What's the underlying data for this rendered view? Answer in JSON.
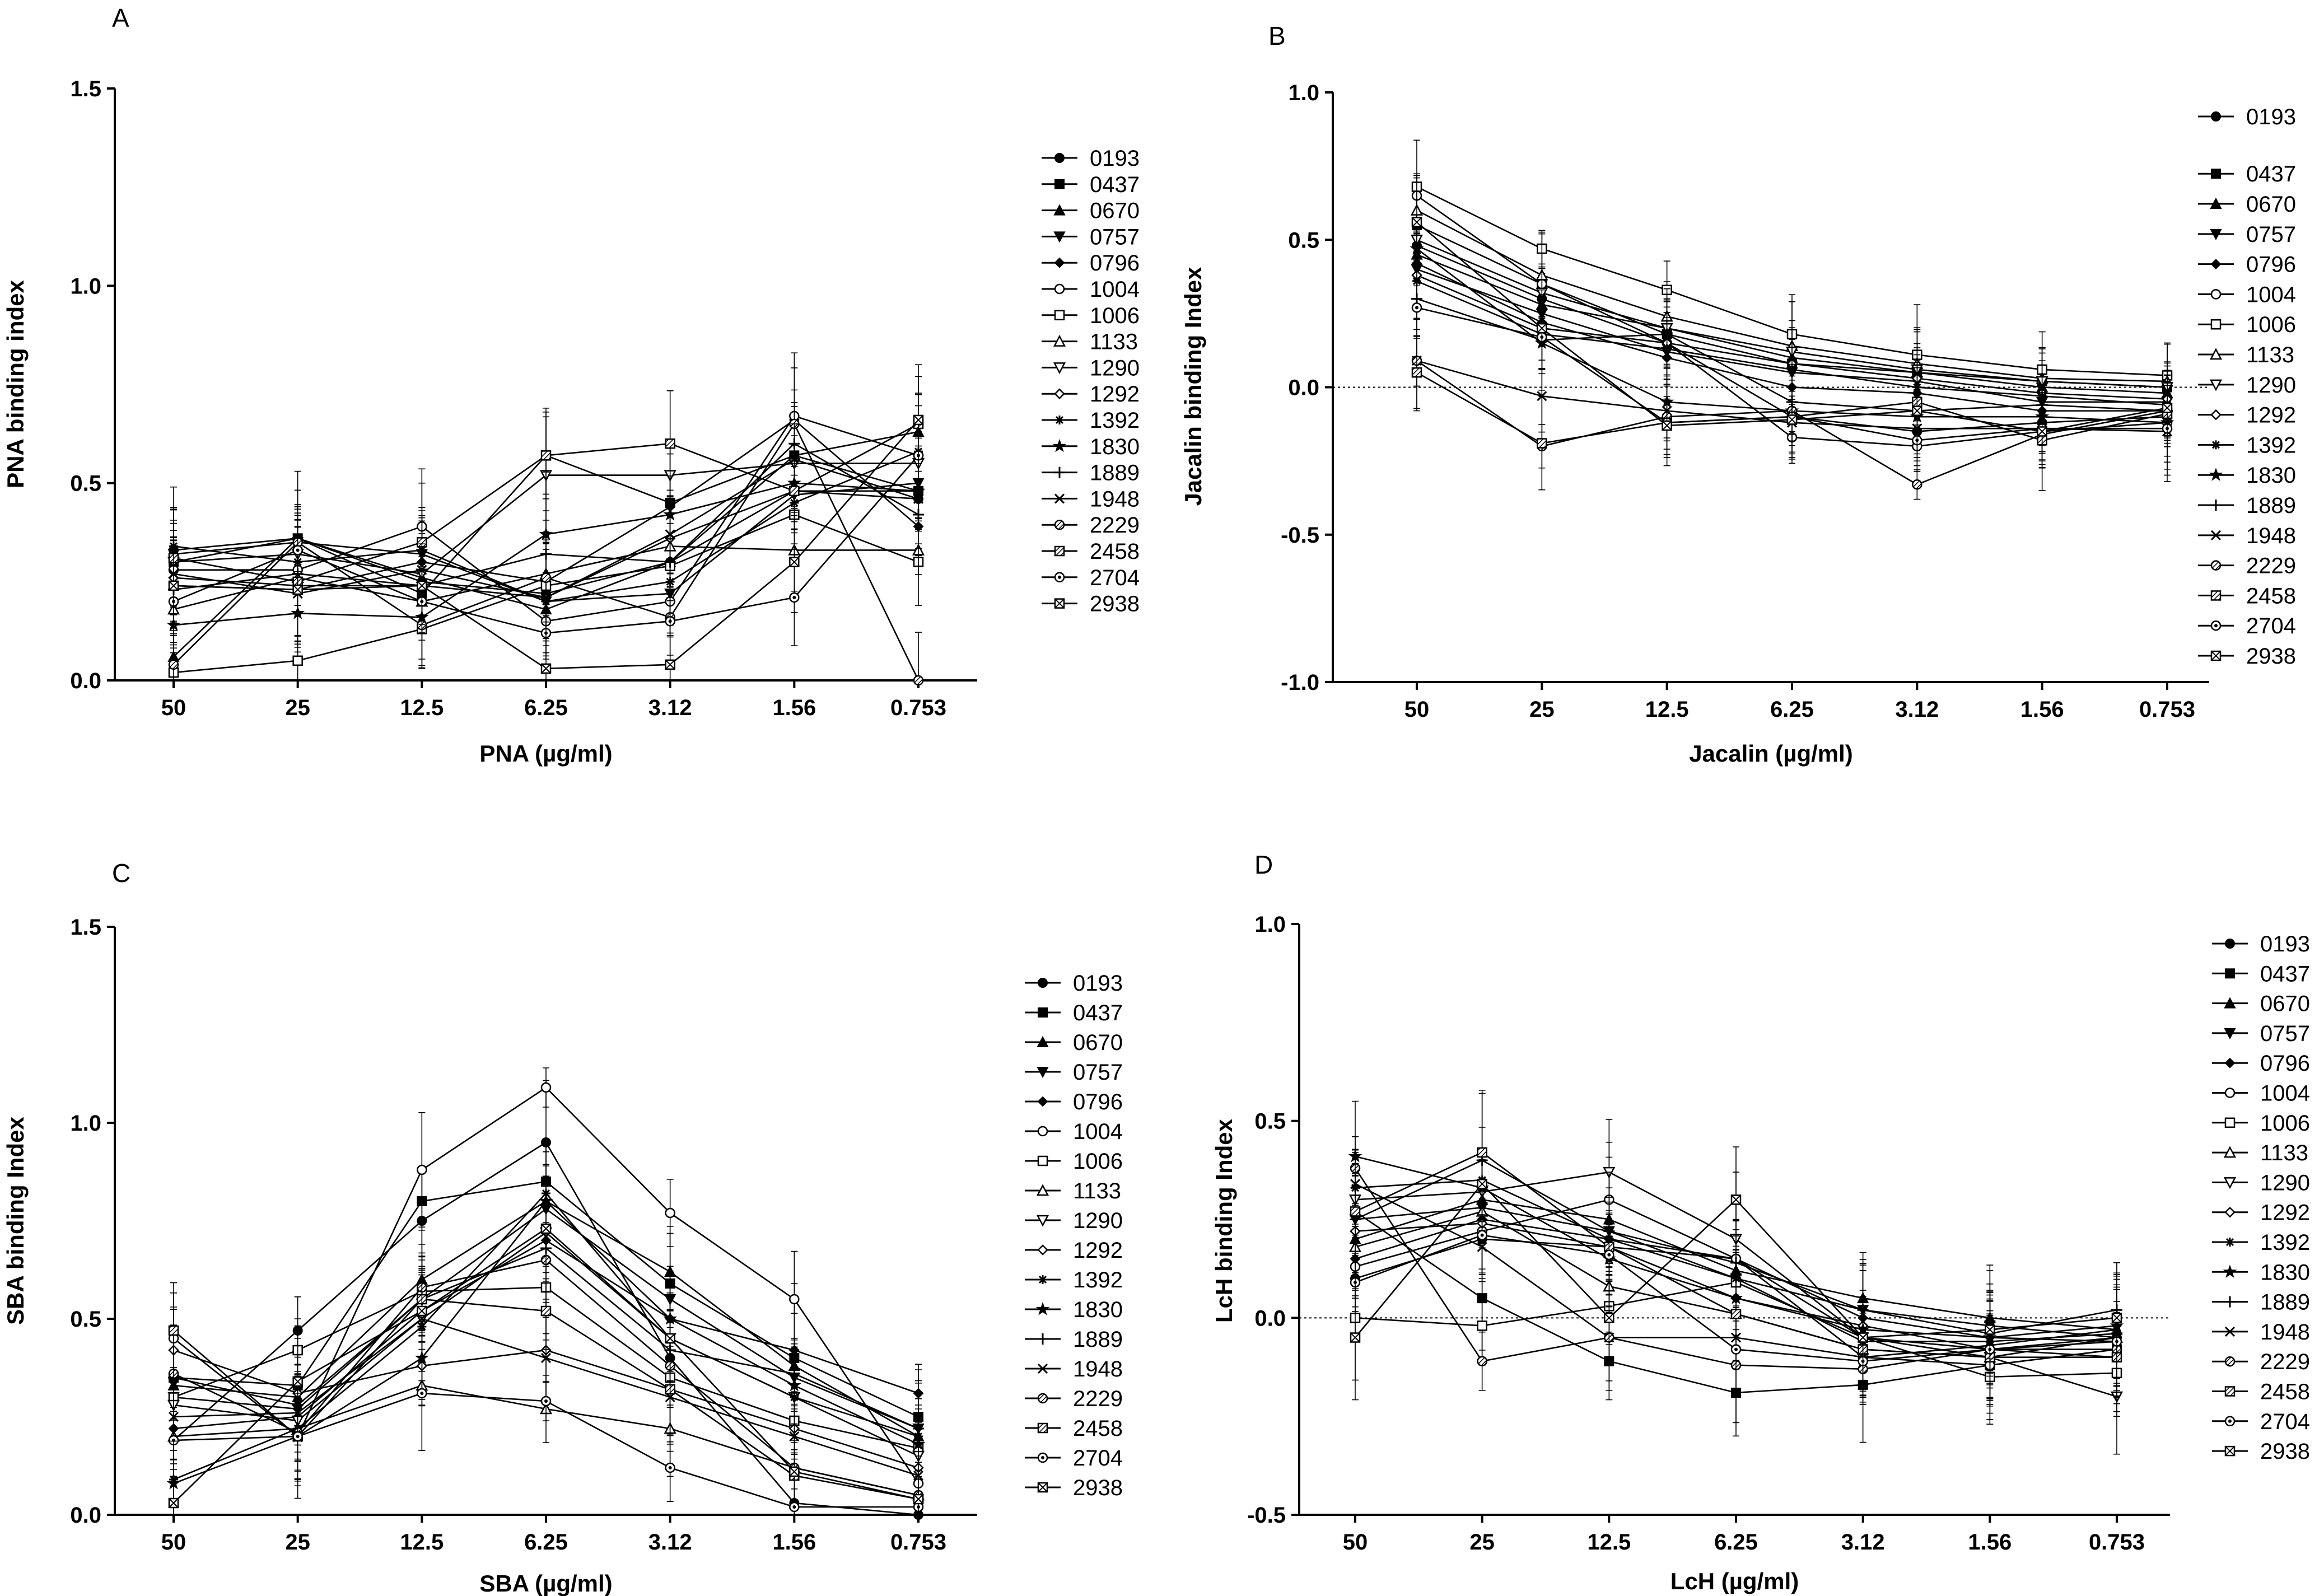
{
  "chart_data": [
    {
      "panel": "A",
      "type": "line",
      "xlabel": "PNA (µg/ml)",
      "ylabel": "PNA binding index",
      "categories": [
        "50",
        "25",
        "12.5",
        "6.25",
        "3.12",
        "1.56",
        "0.753"
      ],
      "ylim": [
        0,
        1.5
      ],
      "yticks": [
        "0.0",
        "0.5",
        "1.0",
        "1.5"
      ],
      "zero_line": false,
      "legend_gap_after_first": false,
      "series": [
        {
          "name": "0193",
          "marker": "circle-filled",
          "values": [
            0.33,
            0.36,
            0.25,
            0.22,
            0.3,
            0.48,
            0.46
          ]
        },
        {
          "name": "0437",
          "marker": "square-filled",
          "values": [
            0.3,
            0.36,
            0.22,
            0.57,
            0.45,
            0.57,
            0.48
          ]
        },
        {
          "name": "0670",
          "marker": "triangle-up-filled",
          "values": [
            0.06,
            0.36,
            0.26,
            0.18,
            0.3,
            0.57,
            0.63
          ]
        },
        {
          "name": "0757",
          "marker": "triangle-down-filled",
          "values": [
            0.32,
            0.35,
            0.32,
            0.2,
            0.22,
            0.47,
            0.5
          ]
        },
        {
          "name": "0796",
          "marker": "diamond-filled",
          "values": [
            0.24,
            0.23,
            0.3,
            0.25,
            0.44,
            0.66,
            0.39
          ]
        },
        {
          "name": "1004",
          "marker": "circle-open",
          "values": [
            0.28,
            0.28,
            0.39,
            0.15,
            0.2,
            0.67,
            0.57
          ]
        },
        {
          "name": "1006",
          "marker": "square-open",
          "values": [
            0.02,
            0.05,
            0.13,
            0.24,
            0.29,
            0.42,
            0.3
          ]
        },
        {
          "name": "1133",
          "marker": "triangle-up-open",
          "values": [
            0.18,
            0.26,
            0.2,
            0.27,
            0.34,
            0.33,
            0.33
          ]
        },
        {
          "name": "1290",
          "marker": "triangle-down-open",
          "values": [
            0.3,
            0.32,
            0.27,
            0.52,
            0.52,
            0.55,
            0.55
          ]
        },
        {
          "name": "1292",
          "marker": "diamond-open",
          "values": [
            0.26,
            0.24,
            0.24,
            0.21,
            0.36,
            0.48,
            0.48
          ]
        },
        {
          "name": "1392",
          "marker": "asterisk",
          "values": [
            0.34,
            0.3,
            0.33,
            0.2,
            0.25,
            0.45,
            0.58
          ]
        },
        {
          "name": "1830",
          "marker": "star",
          "values": [
            0.14,
            0.17,
            0.16,
            0.37,
            0.42,
            0.5,
            0.48
          ]
        },
        {
          "name": "1889",
          "marker": "plus",
          "values": [
            0.23,
            0.27,
            0.24,
            0.32,
            0.3,
            0.6,
            0.42
          ]
        },
        {
          "name": "1948",
          "marker": "x",
          "values": [
            0.27,
            0.22,
            0.28,
            0.21,
            0.37,
            0.56,
            0.46
          ]
        },
        {
          "name": "2229",
          "marker": "circle-hatched",
          "values": [
            0.04,
            0.35,
            0.14,
            0.26,
            0.16,
            0.65,
            0.0
          ]
        },
        {
          "name": "2458",
          "marker": "square-hatched",
          "values": [
            0.31,
            0.25,
            0.35,
            0.57,
            0.6,
            0.48,
            0.65
          ]
        },
        {
          "name": "2704",
          "marker": "circle-dotted",
          "values": [
            0.2,
            0.33,
            0.2,
            0.12,
            0.15,
            0.21,
            0.57
          ]
        },
        {
          "name": "2938",
          "marker": "square-crossed",
          "values": [
            0.24,
            0.23,
            0.24,
            0.03,
            0.04,
            0.3,
            0.66
          ]
        }
      ]
    },
    {
      "panel": "B",
      "type": "line",
      "xlabel": "Jacalin (µg/ml)",
      "ylabel": "Jacalin binding Index",
      "categories": [
        "50",
        "25",
        "12.5",
        "6.25",
        "3.12",
        "1.56",
        "0.753"
      ],
      "ylim": [
        -1,
        1
      ],
      "yticks": [
        "-1.0",
        "-0.5",
        "0.0",
        "0.5",
        "1.0"
      ],
      "zero_line": true,
      "legend_gap_after_first": true,
      "series": [
        {
          "name": "0193",
          "marker": "circle-filled",
          "values": [
            0.48,
            0.3,
            0.15,
            -0.1,
            -0.15,
            -0.12,
            -0.1
          ]
        },
        {
          "name": "0437",
          "marker": "square-filled",
          "values": [
            0.55,
            0.35,
            0.18,
            0.08,
            0.05,
            0.02,
            0.0
          ]
        },
        {
          "name": "0670",
          "marker": "triangle-up-filled",
          "values": [
            0.45,
            0.28,
            0.2,
            0.1,
            0.05,
            0.0,
            -0.02
          ]
        },
        {
          "name": "0757",
          "marker": "triangle-down-filled",
          "values": [
            0.4,
            0.25,
            0.12,
            0.05,
            0.02,
            -0.05,
            -0.05
          ]
        },
        {
          "name": "0796",
          "marker": "diamond-filled",
          "values": [
            0.42,
            0.22,
            0.1,
            0.0,
            -0.02,
            -0.08,
            -0.08
          ]
        },
        {
          "name": "1004",
          "marker": "circle-open",
          "values": [
            0.65,
            0.35,
            0.15,
            -0.17,
            -0.2,
            -0.15,
            -0.12
          ]
        },
        {
          "name": "1006",
          "marker": "square-open",
          "values": [
            0.68,
            0.47,
            0.33,
            0.18,
            0.11,
            0.06,
            0.04
          ]
        },
        {
          "name": "1133",
          "marker": "triangle-up-open",
          "values": [
            0.6,
            0.38,
            0.24,
            0.14,
            0.08,
            0.03,
            0.02
          ]
        },
        {
          "name": "1290",
          "marker": "triangle-down-open",
          "values": [
            0.5,
            0.32,
            0.2,
            0.12,
            0.06,
            0.02,
            0.0
          ]
        },
        {
          "name": "1292",
          "marker": "diamond-open",
          "values": [
            0.38,
            0.2,
            0.15,
            0.08,
            0.03,
            -0.02,
            -0.04
          ]
        },
        {
          "name": "1392",
          "marker": "asterisk",
          "values": [
            0.36,
            0.18,
            0.13,
            0.06,
            0.0,
            -0.03,
            -0.06
          ]
        },
        {
          "name": "1830",
          "marker": "star",
          "values": [
            0.47,
            0.15,
            -0.05,
            -0.08,
            -0.1,
            -0.1,
            -0.12
          ]
        },
        {
          "name": "1889",
          "marker": "plus",
          "values": [
            0.3,
            0.16,
            0.18,
            -0.05,
            -0.08,
            -0.06,
            -0.08
          ]
        },
        {
          "name": "1948",
          "marker": "x",
          "values": [
            0.09,
            -0.03,
            -0.08,
            -0.12,
            -0.14,
            -0.14,
            -0.15
          ]
        },
        {
          "name": "2229",
          "marker": "circle-hatched",
          "values": [
            0.09,
            -0.2,
            -0.1,
            -0.08,
            -0.33,
            -0.16,
            -0.08
          ]
        },
        {
          "name": "2458",
          "marker": "square-hatched",
          "values": [
            0.05,
            -0.19,
            -0.12,
            -0.1,
            -0.05,
            -0.18,
            -0.09
          ]
        },
        {
          "name": "2704",
          "marker": "circle-dotted",
          "values": [
            0.27,
            0.17,
            -0.12,
            -0.1,
            -0.18,
            -0.14,
            -0.14
          ]
        },
        {
          "name": "2938",
          "marker": "square-crossed",
          "values": [
            0.56,
            0.2,
            -0.13,
            -0.11,
            -0.08,
            -0.15,
            -0.07
          ]
        }
      ]
    },
    {
      "panel": "C",
      "type": "line",
      "xlabel": "SBA (µg/ml)",
      "ylabel": "SBA binding Index",
      "categories": [
        "50",
        "25",
        "12.5",
        "6.25",
        "3.12",
        "1.56",
        "0.753"
      ],
      "ylim": [
        0,
        1.5
      ],
      "yticks": [
        "0.0",
        "0.5",
        "1.0",
        "1.5"
      ],
      "zero_line": false,
      "legend_gap_after_first": false,
      "series": [
        {
          "name": "0193",
          "marker": "circle-filled",
          "values": [
            0.19,
            0.47,
            0.75,
            0.95,
            0.4,
            0.03,
            0.0
          ]
        },
        {
          "name": "0437",
          "marker": "square-filled",
          "values": [
            0.35,
            0.33,
            0.8,
            0.85,
            0.59,
            0.4,
            0.25
          ]
        },
        {
          "name": "0670",
          "marker": "triangle-up-filled",
          "values": [
            0.33,
            0.3,
            0.6,
            0.8,
            0.62,
            0.38,
            0.2
          ]
        },
        {
          "name": "0757",
          "marker": "triangle-down-filled",
          "values": [
            0.3,
            0.27,
            0.55,
            0.78,
            0.55,
            0.35,
            0.22
          ]
        },
        {
          "name": "0796",
          "marker": "diamond-filled",
          "values": [
            0.22,
            0.25,
            0.52,
            0.7,
            0.5,
            0.42,
            0.31
          ]
        },
        {
          "name": "1004",
          "marker": "circle-open",
          "values": [
            0.45,
            0.2,
            0.88,
            1.09,
            0.77,
            0.55,
            0.08
          ]
        },
        {
          "name": "1006",
          "marker": "square-open",
          "values": [
            0.3,
            0.42,
            0.57,
            0.58,
            0.35,
            0.24,
            0.17
          ]
        },
        {
          "name": "1133",
          "marker": "triangle-up-open",
          "values": [
            0.2,
            0.22,
            0.33,
            0.27,
            0.22,
            0.12,
            0.05
          ]
        },
        {
          "name": "1290",
          "marker": "triangle-down-open",
          "values": [
            0.28,
            0.24,
            0.5,
            0.72,
            0.45,
            0.3,
            0.15
          ]
        },
        {
          "name": "1292",
          "marker": "diamond-open",
          "values": [
            0.42,
            0.31,
            0.38,
            0.42,
            0.32,
            0.22,
            0.12
          ]
        },
        {
          "name": "1392",
          "marker": "asterisk",
          "values": [
            0.09,
            0.22,
            0.48,
            0.82,
            0.45,
            0.3,
            0.2
          ]
        },
        {
          "name": "1830",
          "marker": "star",
          "values": [
            0.08,
            0.2,
            0.4,
            0.8,
            0.5,
            0.33,
            0.18
          ]
        },
        {
          "name": "1889",
          "marker": "plus",
          "values": [
            0.35,
            0.28,
            0.55,
            0.68,
            0.42,
            0.36,
            0.22
          ]
        },
        {
          "name": "1948",
          "marker": "x",
          "values": [
            0.25,
            0.26,
            0.5,
            0.4,
            0.3,
            0.2,
            0.1
          ]
        },
        {
          "name": "2229",
          "marker": "circle-hatched",
          "values": [
            0.36,
            0.21,
            0.58,
            0.65,
            0.38,
            0.12,
            0.05
          ]
        },
        {
          "name": "2458",
          "marker": "square-hatched",
          "values": [
            0.47,
            0.2,
            0.55,
            0.52,
            0.32,
            0.1,
            0.04
          ]
        },
        {
          "name": "2704",
          "marker": "circle-dotted",
          "values": [
            0.19,
            0.2,
            0.31,
            0.29,
            0.12,
            0.02,
            0.02
          ]
        },
        {
          "name": "2938",
          "marker": "square-crossed",
          "values": [
            0.03,
            0.34,
            0.52,
            0.73,
            0.45,
            0.11,
            0.04
          ]
        }
      ]
    },
    {
      "panel": "D",
      "type": "line",
      "xlabel": "LcH (µg/ml)",
      "ylabel": "LcH binding Index",
      "categories": [
        "50",
        "25",
        "12.5",
        "6.25",
        "3.12",
        "1.56",
        "0.753"
      ],
      "ylim": [
        -0.5,
        1
      ],
      "yticks": [
        "-0.5",
        "0.0",
        "0.5",
        "1.0"
      ],
      "zero_line": true,
      "legend_gap_after_first": false,
      "series": [
        {
          "name": "0193",
          "marker": "circle-filled",
          "values": [
            0.1,
            0.2,
            0.18,
            0.15,
            -0.05,
            -0.08,
            -0.05
          ]
        },
        {
          "name": "0437",
          "marker": "square-filled",
          "values": [
            0.27,
            0.05,
            -0.11,
            -0.19,
            -0.17,
            -0.12,
            -0.08
          ]
        },
        {
          "name": "0670",
          "marker": "triangle-up-filled",
          "values": [
            0.2,
            0.3,
            0.25,
            0.12,
            0.05,
            0.0,
            -0.03
          ]
        },
        {
          "name": "0757",
          "marker": "triangle-down-filled",
          "values": [
            0.25,
            0.28,
            0.22,
            0.1,
            0.02,
            -0.02,
            -0.05
          ]
        },
        {
          "name": "0796",
          "marker": "diamond-filled",
          "values": [
            0.15,
            0.25,
            0.2,
            0.15,
            0.0,
            -0.05,
            -0.06
          ]
        },
        {
          "name": "1004",
          "marker": "circle-open",
          "values": [
            0.13,
            0.22,
            0.3,
            0.15,
            -0.1,
            -0.12,
            -0.08
          ]
        },
        {
          "name": "1006",
          "marker": "square-open",
          "values": [
            0.0,
            -0.02,
            0.03,
            0.09,
            -0.05,
            -0.15,
            -0.14
          ]
        },
        {
          "name": "1133",
          "marker": "triangle-up-open",
          "values": [
            0.18,
            0.27,
            0.08,
            0.01,
            -0.08,
            -0.1,
            -0.05
          ]
        },
        {
          "name": "1290",
          "marker": "triangle-down-open",
          "values": [
            0.3,
            0.32,
            0.37,
            0.2,
            -0.05,
            -0.1,
            -0.2
          ]
        },
        {
          "name": "1292",
          "marker": "diamond-open",
          "values": [
            0.22,
            0.24,
            0.18,
            0.05,
            -0.02,
            -0.08,
            -0.1
          ]
        },
        {
          "name": "1392",
          "marker": "asterisk",
          "values": [
            0.33,
            0.35,
            0.2,
            0.1,
            -0.06,
            -0.06,
            -0.04
          ]
        },
        {
          "name": "1830",
          "marker": "star",
          "values": [
            0.41,
            0.33,
            0.15,
            0.05,
            -0.03,
            -0.05,
            -0.02
          ]
        },
        {
          "name": "1889",
          "marker": "plus",
          "values": [
            0.25,
            0.4,
            0.22,
            0.14,
            0.02,
            -0.04,
            0.02
          ]
        },
        {
          "name": "1948",
          "marker": "x",
          "values": [
            0.34,
            0.18,
            -0.05,
            -0.05,
            -0.1,
            -0.07,
            -0.03
          ]
        },
        {
          "name": "2229",
          "marker": "circle-hatched",
          "values": [
            0.38,
            -0.11,
            -0.05,
            -0.12,
            -0.13,
            -0.08,
            -0.08
          ]
        },
        {
          "name": "2458",
          "marker": "square-hatched",
          "values": [
            0.27,
            0.42,
            0.18,
            0.01,
            -0.08,
            -0.1,
            -0.1
          ]
        },
        {
          "name": "2704",
          "marker": "circle-dotted",
          "values": [
            0.09,
            0.21,
            0.16,
            -0.08,
            -0.11,
            -0.08,
            -0.06
          ]
        },
        {
          "name": "2938",
          "marker": "square-crossed",
          "values": [
            -0.05,
            0.34,
            0.0,
            0.3,
            -0.05,
            -0.03,
            0.0
          ]
        }
      ]
    }
  ]
}
